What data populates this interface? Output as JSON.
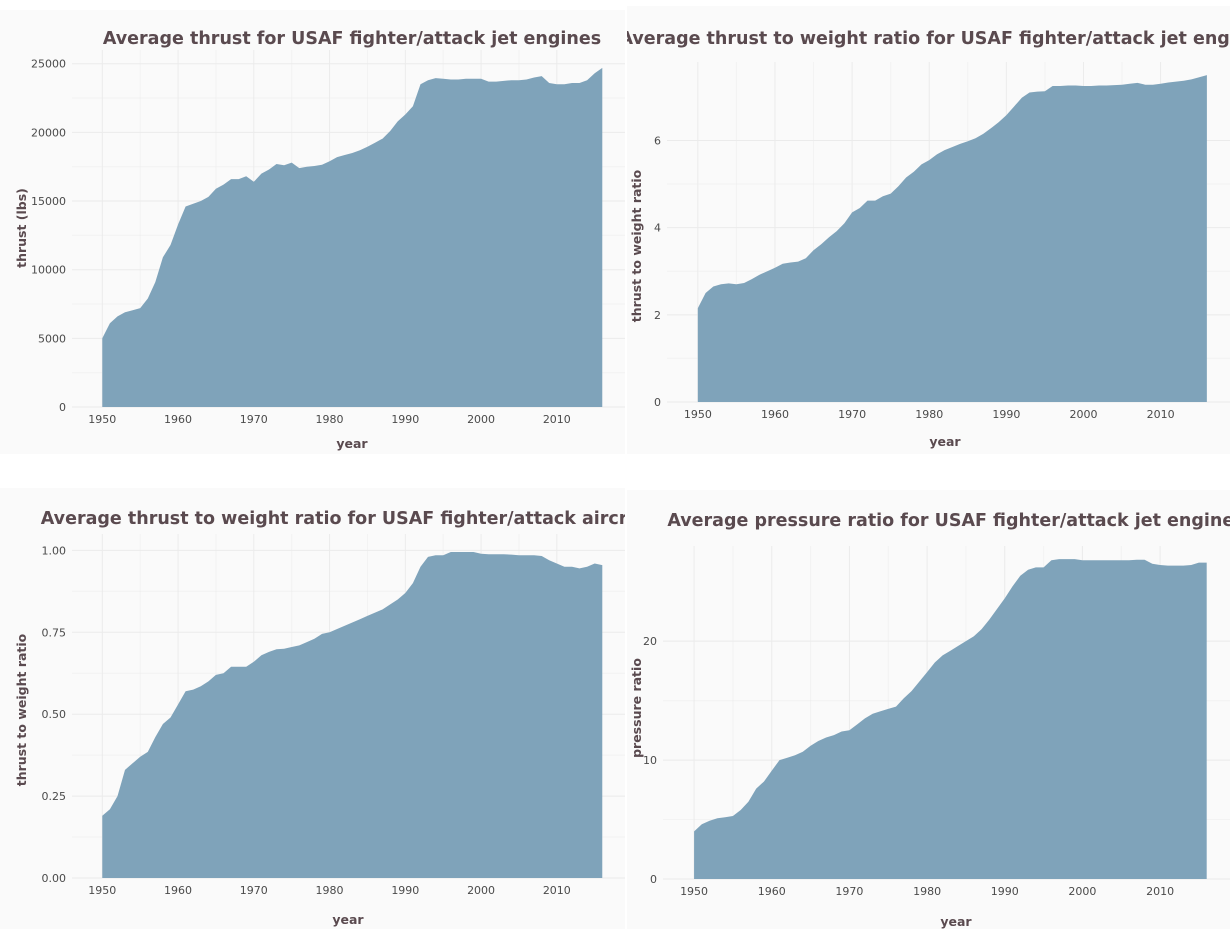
{
  "style": {
    "area_color": "#7fa3ba",
    "title_color": "#5a4a4f",
    "panel_bg": "#fafafa",
    "grid_color": "#ebebeb"
  },
  "chart_data": [
    {
      "type": "area",
      "title": "Average thrust for USAF fighter/attack jet engines",
      "xlabel": "year",
      "ylabel": "thrust (lbs)",
      "xlim": [
        1946,
        2019
      ],
      "ylim": [
        0,
        26000
      ],
      "xticks": [
        1950,
        1960,
        1970,
        1980,
        1990,
        2000,
        2010
      ],
      "yticks": [
        0,
        5000,
        10000,
        15000,
        20000,
        25000
      ],
      "ytick_labels": [
        "0",
        "5000",
        "10000",
        "15000",
        "20000",
        "25000"
      ],
      "grid": true,
      "x": [
        1950,
        1951,
        1952,
        1953,
        1954,
        1955,
        1956,
        1957,
        1958,
        1959,
        1960,
        1961,
        1962,
        1963,
        1964,
        1965,
        1966,
        1967,
        1968,
        1969,
        1970,
        1971,
        1972,
        1973,
        1974,
        1975,
        1976,
        1977,
        1978,
        1979,
        1980,
        1981,
        1982,
        1983,
        1984,
        1985,
        1986,
        1987,
        1988,
        1989,
        1990,
        1991,
        1992,
        1993,
        1994,
        1995,
        1996,
        1997,
        1998,
        1999,
        2000,
        2001,
        2002,
        2003,
        2004,
        2005,
        2006,
        2007,
        2008,
        2009,
        2010,
        2011,
        2012,
        2013,
        2014,
        2015,
        2016
      ],
      "y": [
        5000,
        6100,
        6600,
        6900,
        7050,
        7200,
        7900,
        9100,
        10900,
        11800,
        13300,
        14600,
        14800,
        15000,
        15300,
        15900,
        16200,
        16600,
        16600,
        16800,
        16400,
        17000,
        17300,
        17700,
        17600,
        17800,
        17400,
        17500,
        17550,
        17650,
        17900,
        18200,
        18350,
        18500,
        18700,
        18950,
        19250,
        19550,
        20100,
        20800,
        21300,
        21900,
        23500,
        23800,
        23950,
        23900,
        23850,
        23850,
        23900,
        23900,
        23900,
        23700,
        23700,
        23750,
        23800,
        23800,
        23850,
        24000,
        24100,
        23600,
        23500,
        23500,
        23600,
        23600,
        23800,
        24300,
        24700
      ]
    },
    {
      "type": "area",
      "title": "Average thrust to weight ratio for USAF fighter/attack jet engines",
      "xlabel": "year",
      "ylabel": "thrust to weight ratio",
      "xlim": [
        1946,
        2019
      ],
      "ylim": [
        0,
        7.8
      ],
      "xticks": [
        1950,
        1960,
        1970,
        1980,
        1990,
        2000,
        2010
      ],
      "yticks": [
        0,
        2,
        4,
        6
      ],
      "ytick_labels": [
        "0",
        "2",
        "4",
        "6"
      ],
      "grid": true,
      "x": [
        1950,
        1951,
        1952,
        1953,
        1954,
        1955,
        1956,
        1957,
        1958,
        1959,
        1960,
        1961,
        1962,
        1963,
        1964,
        1965,
        1966,
        1967,
        1968,
        1969,
        1970,
        1971,
        1972,
        1973,
        1974,
        1975,
        1976,
        1977,
        1978,
        1979,
        1980,
        1981,
        1982,
        1983,
        1984,
        1985,
        1986,
        1987,
        1988,
        1989,
        1990,
        1991,
        1992,
        1993,
        1994,
        1995,
        1996,
        1997,
        1998,
        1999,
        2000,
        2001,
        2002,
        2003,
        2004,
        2005,
        2006,
        2007,
        2008,
        2009,
        2010,
        2011,
        2012,
        2013,
        2014,
        2015,
        2016
      ],
      "y": [
        2.15,
        2.5,
        2.65,
        2.7,
        2.72,
        2.7,
        2.73,
        2.82,
        2.92,
        3.0,
        3.08,
        3.17,
        3.2,
        3.22,
        3.3,
        3.48,
        3.62,
        3.78,
        3.92,
        4.1,
        4.35,
        4.45,
        4.62,
        4.62,
        4.72,
        4.78,
        4.95,
        5.15,
        5.28,
        5.45,
        5.55,
        5.68,
        5.78,
        5.85,
        5.92,
        5.98,
        6.05,
        6.15,
        6.28,
        6.42,
        6.58,
        6.78,
        6.98,
        7.1,
        7.12,
        7.13,
        7.25,
        7.25,
        7.26,
        7.26,
        7.25,
        7.25,
        7.26,
        7.26,
        7.27,
        7.28,
        7.3,
        7.32,
        7.28,
        7.28,
        7.3,
        7.33,
        7.35,
        7.37,
        7.4,
        7.45,
        7.5
      ]
    },
    {
      "type": "area",
      "title": "Average thrust to weight ratio for USAF fighter/attack aircraft",
      "xlabel": "year",
      "ylabel": "thrust to weight ratio",
      "xlim": [
        1946,
        2019
      ],
      "ylim": [
        0,
        1.05
      ],
      "xticks": [
        1950,
        1960,
        1970,
        1980,
        1990,
        2000,
        2010
      ],
      "yticks": [
        0,
        0.25,
        0.5,
        0.75,
        1.0
      ],
      "ytick_labels": [
        "0.00",
        "0.25",
        "0.50",
        "0.75",
        "1.00"
      ],
      "grid": true,
      "x": [
        1950,
        1951,
        1952,
        1953,
        1954,
        1955,
        1956,
        1957,
        1958,
        1959,
        1960,
        1961,
        1962,
        1963,
        1964,
        1965,
        1966,
        1967,
        1968,
        1969,
        1970,
        1971,
        1972,
        1973,
        1974,
        1975,
        1976,
        1977,
        1978,
        1979,
        1980,
        1981,
        1982,
        1983,
        1984,
        1985,
        1986,
        1987,
        1988,
        1989,
        1990,
        1991,
        1992,
        1993,
        1994,
        1995,
        1996,
        1997,
        1998,
        1999,
        2000,
        2001,
        2002,
        2003,
        2004,
        2005,
        2006,
        2007,
        2008,
        2009,
        2010,
        2011,
        2012,
        2013,
        2014,
        2015,
        2016
      ],
      "y": [
        0.19,
        0.21,
        0.25,
        0.33,
        0.35,
        0.37,
        0.385,
        0.43,
        0.47,
        0.49,
        0.53,
        0.57,
        0.575,
        0.585,
        0.6,
        0.62,
        0.625,
        0.645,
        0.645,
        0.645,
        0.66,
        0.68,
        0.69,
        0.698,
        0.7,
        0.705,
        0.71,
        0.72,
        0.73,
        0.745,
        0.75,
        0.76,
        0.77,
        0.78,
        0.79,
        0.8,
        0.81,
        0.82,
        0.835,
        0.85,
        0.87,
        0.9,
        0.95,
        0.98,
        0.985,
        0.985,
        0.995,
        0.995,
        0.995,
        0.995,
        0.99,
        0.988,
        0.988,
        0.988,
        0.987,
        0.985,
        0.985,
        0.985,
        0.983,
        0.97,
        0.96,
        0.95,
        0.95,
        0.945,
        0.95,
        0.96,
        0.955
      ]
    },
    {
      "type": "area",
      "title": "Average pressure ratio for USAF fighter/attack jet engines",
      "xlabel": "year",
      "ylabel": "pressure ratio",
      "xlim": [
        1946,
        2019
      ],
      "ylim": [
        0,
        28
      ],
      "xticks": [
        1950,
        1960,
        1970,
        1980,
        1990,
        2000,
        2010
      ],
      "yticks": [
        0,
        10,
        20
      ],
      "ytick_labels": [
        "0",
        "10",
        "20"
      ],
      "grid": true,
      "x": [
        1950,
        1951,
        1952,
        1953,
        1954,
        1955,
        1956,
        1957,
        1958,
        1959,
        1960,
        1961,
        1962,
        1963,
        1964,
        1965,
        1966,
        1967,
        1968,
        1969,
        1970,
        1971,
        1972,
        1973,
        1974,
        1975,
        1976,
        1977,
        1978,
        1979,
        1980,
        1981,
        1982,
        1983,
        1984,
        1985,
        1986,
        1987,
        1988,
        1989,
        1990,
        1991,
        1992,
        1993,
        1994,
        1995,
        1996,
        1997,
        1998,
        1999,
        2000,
        2001,
        2002,
        2003,
        2004,
        2005,
        2006,
        2007,
        2008,
        2009,
        2010,
        2011,
        2012,
        2013,
        2014,
        2015,
        2016
      ],
      "y": [
        4.0,
        4.6,
        4.9,
        5.1,
        5.2,
        5.3,
        5.8,
        6.5,
        7.6,
        8.2,
        9.1,
        10.0,
        10.2,
        10.4,
        10.7,
        11.2,
        11.6,
        11.9,
        12.1,
        12.4,
        12.5,
        13.0,
        13.5,
        13.9,
        14.1,
        14.3,
        14.5,
        15.2,
        15.8,
        16.6,
        17.4,
        18.2,
        18.8,
        19.2,
        19.6,
        20.0,
        20.4,
        21.0,
        21.8,
        22.7,
        23.6,
        24.6,
        25.5,
        26.0,
        26.2,
        26.2,
        26.8,
        26.9,
        26.9,
        26.9,
        26.8,
        26.8,
        26.8,
        26.8,
        26.8,
        26.8,
        26.8,
        26.85,
        26.85,
        26.5,
        26.4,
        26.35,
        26.35,
        26.35,
        26.4,
        26.6,
        26.6
      ]
    }
  ]
}
